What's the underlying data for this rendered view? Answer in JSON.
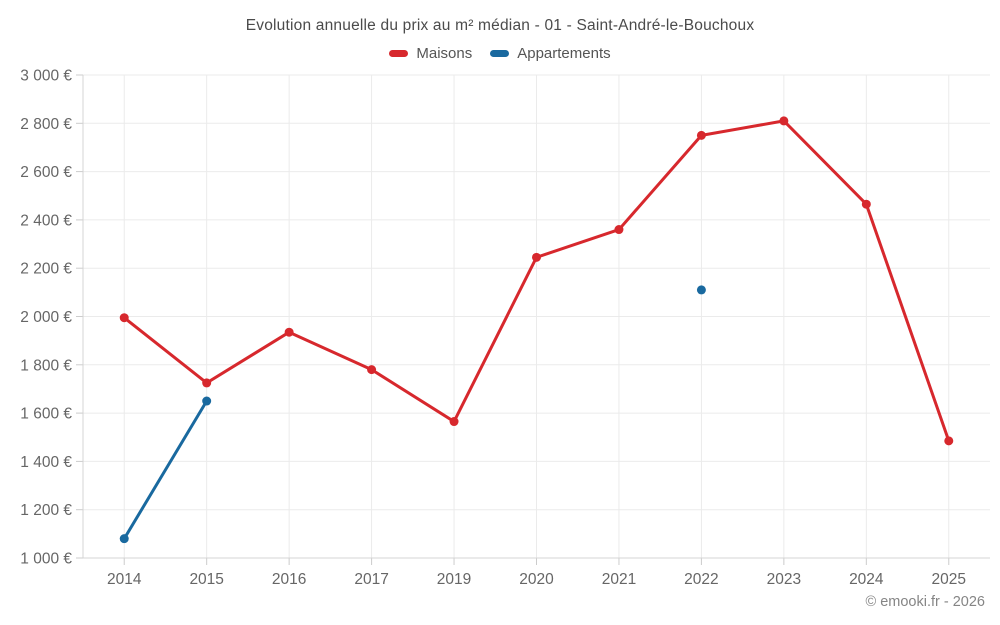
{
  "chart_data": {
    "type": "line",
    "title": "Evolution annuelle du prix au m² médian - 01 - Saint-André-le-Bouchoux",
    "categories": [
      "2014",
      "2015",
      "2016",
      "2017",
      "2019",
      "2020",
      "2021",
      "2022",
      "2023",
      "2024",
      "2025"
    ],
    "series": [
      {
        "name": "Maisons",
        "color": "#d7282d",
        "values": [
          1995,
          1725,
          1935,
          1780,
          1565,
          2245,
          2360,
          2750,
          2810,
          2465,
          1485
        ]
      },
      {
        "name": "Appartements",
        "color": "#19699f",
        "values": [
          1080,
          1650,
          null,
          null,
          null,
          null,
          null,
          2110,
          null,
          null,
          null
        ]
      }
    ],
    "ylim": [
      1000,
      3000
    ],
    "ytick_step": 200,
    "ytick_labels": [
      "1 000 €",
      "1 200 €",
      "1 400 €",
      "1 600 €",
      "1 800 €",
      "2 000 €",
      "2 200 €",
      "2 400 €",
      "2 600 €",
      "2 800 €",
      "3 000 €"
    ],
    "grid": true,
    "legend_position": "top",
    "xlabel": "",
    "ylabel": "",
    "footer": "© emooki.fr - 2026"
  }
}
